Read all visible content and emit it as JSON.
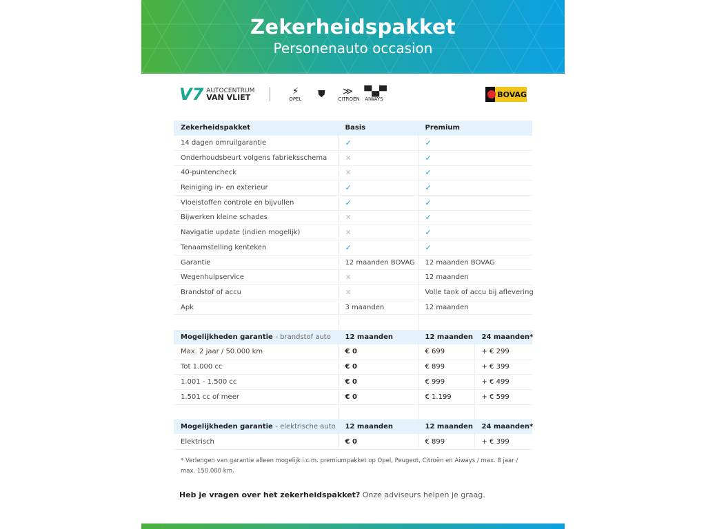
{
  "header": {
    "title": "Zekerheidspakket",
    "subtitle": "Personenauto occasion"
  },
  "logos": {
    "dealer_line1": "AUTOCENTRUM",
    "dealer_line2": "VAN VLIET",
    "brands": [
      "OPEL",
      "PEUGEOT",
      "CITROËN",
      "AIWAYS"
    ],
    "bovag": "BOVAG"
  },
  "colors": {
    "accent": "#0ca0e2",
    "green": "#4cb23d",
    "header_row": "#e3f2fb",
    "check": "#1aa3dc"
  },
  "package_table": {
    "headers": [
      "Zekerheidspakket",
      "Basis",
      "Premium"
    ],
    "rows": [
      {
        "label": "14 dagen omruilgarantie",
        "basis": "check",
        "premium": "check"
      },
      {
        "label": "Onderhoudsbeurt volgens fabrieksschema",
        "basis": "cross",
        "premium": "check"
      },
      {
        "label": "40-puntencheck",
        "basis": "cross",
        "premium": "check"
      },
      {
        "label": "Reiniging in- en exterieur",
        "basis": "check",
        "premium": "check"
      },
      {
        "label": "Vloeistoffen controle en bijvullen",
        "basis": "check",
        "premium": "check"
      },
      {
        "label": "Bijwerken kleine schades",
        "basis": "cross",
        "premium": "check"
      },
      {
        "label": "Navigatie update (indien mogelijk)",
        "basis": "cross",
        "premium": "check"
      },
      {
        "label": "Tenaamstelling kenteken",
        "basis": "check",
        "premium": "check"
      },
      {
        "label": "Garantie",
        "basis": "12 maanden BOVAG",
        "premium": "12 maanden BOVAG"
      },
      {
        "label": "Wegenhulpservice",
        "basis": "cross",
        "premium": "12 maanden"
      },
      {
        "label": "Brandstof of accu",
        "basis": "cross",
        "premium": "Volle tank of accu bij aflevering"
      },
      {
        "label": "Apk",
        "basis": "3 maanden",
        "premium": "12 maanden"
      }
    ]
  },
  "fuel_table": {
    "title": "Mogelijkheden garantie",
    "qualifier": "- brandstof auto",
    "headers": [
      "12 maanden",
      "12 maanden",
      "24 maanden*"
    ],
    "rows": [
      [
        "Max. 2 jaar / 50.000 km",
        "€ 0",
        "€ 699",
        "+ € 299"
      ],
      [
        "Tot 1.000 cc",
        "€ 0",
        "€ 899",
        "+ € 399"
      ],
      [
        "1.001 - 1.500 cc",
        "€ 0",
        "€ 999",
        "+ € 499"
      ],
      [
        "1.501 cc of meer",
        "€ 0",
        "€ 1.199",
        "+ € 599"
      ]
    ]
  },
  "electric_table": {
    "title": "Mogelijkheden garantie",
    "qualifier": "- elektrische auto",
    "headers": [
      "12 maanden",
      "12 maanden",
      "24 maanden*"
    ],
    "rows": [
      [
        "Elektrisch",
        "€ 0",
        "€ 899",
        "+ € 399"
      ]
    ]
  },
  "footnote": "* Verlengen van garantie alleen mogelijk i.c.m. premiumpakket op Opel, Peugeot, Citroën en Aiways / max. 8 jaar / max. 150.000 km.",
  "question": {
    "bold": "Heb je vragen over het zekerheidspakket?",
    "text": " Onze adviseurs helpen je graag."
  }
}
